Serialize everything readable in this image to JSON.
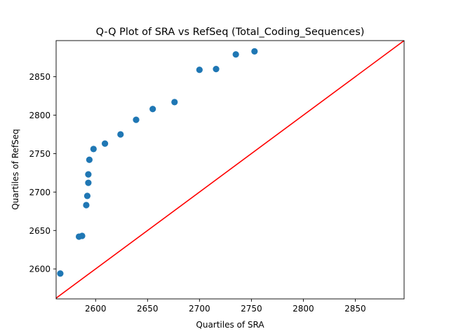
{
  "chart_data": {
    "type": "scatter",
    "title": "Q-Q Plot of SRA vs RefSeq (Total_Coding_Sequences)",
    "xlabel": "Quartiles of SRA",
    "ylabel": "Quartiles of RefSeq",
    "xlim": [
      2562,
      2897
    ],
    "ylim": [
      2561,
      2897
    ],
    "xticks": [
      2600,
      2650,
      2700,
      2750,
      2800,
      2850
    ],
    "yticks": [
      2600,
      2650,
      2700,
      2750,
      2800,
      2850
    ],
    "grid": false,
    "legend": "none",
    "series": [
      {
        "color": "#1f77b4",
        "points": [
          {
            "x": 2566,
            "y": 2594
          },
          {
            "x": 2584,
            "y": 2642
          },
          {
            "x": 2587,
            "y": 2643
          },
          {
            "x": 2591,
            "y": 2683
          },
          {
            "x": 2592,
            "y": 2695
          },
          {
            "x": 2593,
            "y": 2712
          },
          {
            "x": 2593,
            "y": 2723
          },
          {
            "x": 2594,
            "y": 2742
          },
          {
            "x": 2598,
            "y": 2756
          },
          {
            "x": 2609,
            "y": 2763
          },
          {
            "x": 2624,
            "y": 2775
          },
          {
            "x": 2639,
            "y": 2794
          },
          {
            "x": 2655,
            "y": 2808
          },
          {
            "x": 2676,
            "y": 2817
          },
          {
            "x": 2700,
            "y": 2859
          },
          {
            "x": 2716,
            "y": 2860
          },
          {
            "x": 2735,
            "y": 2879
          },
          {
            "x": 2753,
            "y": 2883
          }
        ]
      }
    ],
    "reference_line": {
      "color": "#ff0000",
      "slope": 1,
      "intercept": 0
    }
  }
}
